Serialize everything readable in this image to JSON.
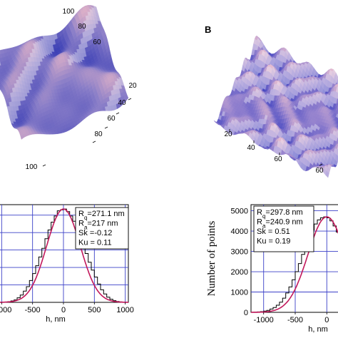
{
  "panel_b_letter": "B",
  "chart_data": [
    {
      "type": "surface",
      "panel": "A-surface",
      "x_ticks": [
        "60",
        "80",
        "100"
      ],
      "y_ticks": [
        "20",
        "40",
        "60",
        "80",
        "100"
      ],
      "colors": {
        "peak": "#e9b7c8",
        "valley": "#3b3fb5",
        "mid": "#8a7ec8"
      }
    },
    {
      "type": "surface",
      "panel": "B-surface",
      "x_ticks": [
        "20",
        "40",
        "60"
      ],
      "y_ticks": [
        "60"
      ],
      "colors": {
        "peak": "#f0c4d0",
        "valley": "#3a3fbf",
        "mid": "#9a86cf"
      }
    },
    {
      "type": "bar",
      "panel": "A-histogram",
      "xlabel": "h, nm",
      "ylabel": "",
      "xlim": [
        -1050,
        1050
      ],
      "ylim": [
        0,
        5600
      ],
      "x_ticks": [
        -1000,
        -500,
        0,
        500,
        1000
      ],
      "x_tick_labels": [
        "-1000",
        "-500",
        "0",
        "500",
        "1000"
      ],
      "bin_width": 50,
      "sigma": 271.1,
      "bins_x": [
        -1000,
        -950,
        -900,
        -850,
        -800,
        -750,
        -700,
        -650,
        -600,
        -550,
        -500,
        -450,
        -400,
        -350,
        -300,
        -250,
        -200,
        -150,
        -100,
        -50,
        0,
        50,
        100,
        150,
        200,
        250,
        300,
        350,
        400,
        450,
        500,
        550,
        600,
        650,
        700,
        750,
        800,
        850,
        900,
        950
      ],
      "bins_y": [
        10,
        20,
        40,
        80,
        140,
        260,
        420,
        640,
        900,
        1250,
        1650,
        2100,
        2600,
        3100,
        3650,
        4150,
        4600,
        4950,
        5250,
        5300,
        5350,
        5200,
        4950,
        4650,
        4250,
        3750,
        3250,
        2800,
        2300,
        1850,
        1450,
        1050,
        720,
        480,
        300,
        180,
        100,
        55,
        25,
        10
      ],
      "fit_color": "#c2185b",
      "stats": [
        "R",
        "=271.1 nm",
        "R",
        "=217 nm",
        "Sk =-0.12",
        "Ku = 0.11"
      ],
      "stat_subs": [
        "q",
        "a"
      ]
    },
    {
      "type": "bar",
      "panel": "B-histogram",
      "xlabel": "h, nm",
      "ylabel": "Number of points",
      "xlim": [
        -1200,
        200
      ],
      "ylim": [
        0,
        5300
      ],
      "x_ticks": [
        -1000,
        -500,
        0
      ],
      "x_tick_labels": [
        "-1000",
        "-500",
        "0"
      ],
      "y_ticks": [
        0,
        1000,
        2000,
        3000,
        4000,
        5000
      ],
      "y_tick_labels": [
        "0",
        "1000",
        "2000",
        "3000",
        "4000",
        "5000"
      ],
      "bin_width": 50,
      "sigma": 297.8,
      "bins_x": [
        -1200,
        -1150,
        -1100,
        -1050,
        -1000,
        -950,
        -900,
        -850,
        -800,
        -750,
        -700,
        -650,
        -600,
        -550,
        -500,
        -450,
        -400,
        -350,
        -300,
        -250,
        -200,
        -150,
        -100,
        -50,
        0,
        50,
        100,
        150
      ],
      "bins_y": [
        5,
        10,
        20,
        35,
        60,
        100,
        160,
        240,
        350,
        500,
        700,
        950,
        1250,
        1600,
        2000,
        2400,
        2850,
        3300,
        3700,
        4050,
        4350,
        4550,
        4650,
        4700,
        4650,
        4500,
        4250,
        3950
      ],
      "fit_color": "#c2185b",
      "stats": [
        "R",
        "=297.8 nm",
        "R",
        "=240.9 nm",
        "Sk = 0.51",
        "Ku = 0.19"
      ],
      "stat_subs": [
        "q",
        "a"
      ]
    }
  ]
}
